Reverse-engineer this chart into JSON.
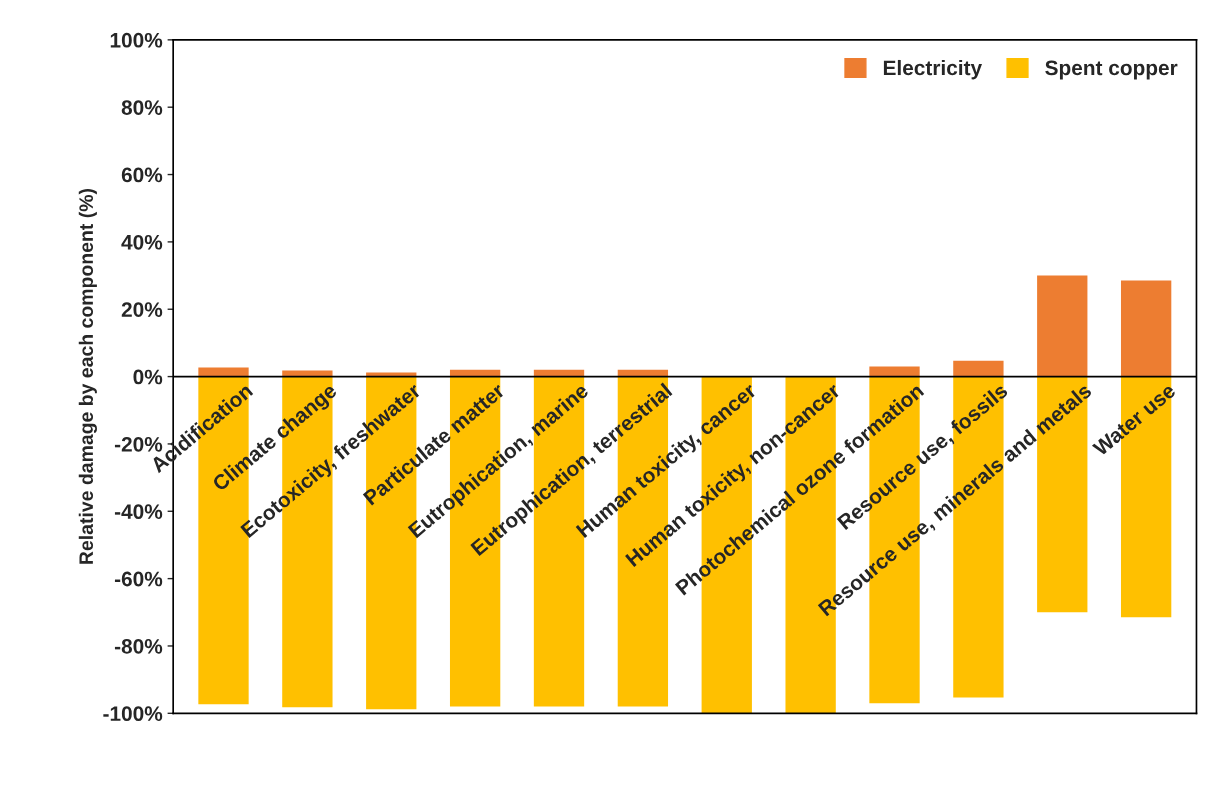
{
  "chart_data": {
    "type": "bar",
    "stacked": true,
    "ylabel": "Relative damage by each component (%)",
    "categories": [
      "Acidification",
      "Climate change",
      "Ecotoxicity, freshwater",
      "Particulate matter",
      "Eutrophication, marine",
      "Eutrophication, terrestrial",
      "Human toxicity, cancer",
      "Human toxicity, non-cancer",
      "Photochemical ozone formation",
      "Resource use, fossils",
      "Resource use, minerals and metals",
      "Water use"
    ],
    "series": [
      {
        "name": "Electricity",
        "color": "#ed7d31",
        "values": [
          2.7,
          1.8,
          1.2,
          2,
          2,
          2,
          0,
          0,
          3,
          4.7,
          30,
          28.5
        ]
      },
      {
        "name": "Spent copper",
        "color": "#ffc000",
        "values": [
          -97.3,
          -98.2,
          -98.8,
          -98,
          -98,
          -98,
          -100,
          -100,
          -97,
          -95.3,
          -70,
          -71.5
        ]
      }
    ],
    "ylim": [
      -100,
      100
    ],
    "yticks": [
      {
        "value": -100,
        "label": "-100%"
      },
      {
        "value": -80,
        "label": "-80%"
      },
      {
        "value": -60,
        "label": "-60%"
      },
      {
        "value": -40,
        "label": "-40%"
      },
      {
        "value": -20,
        "label": "-20%"
      },
      {
        "value": 0,
        "label": "0%"
      },
      {
        "value": 20,
        "label": "20%"
      },
      {
        "value": 40,
        "label": "40%"
      },
      {
        "value": 60,
        "label": "60%"
      },
      {
        "value": 80,
        "label": "80%"
      },
      {
        "value": 100,
        "label": "100%"
      }
    ],
    "legend": "top right",
    "grid": false
  }
}
